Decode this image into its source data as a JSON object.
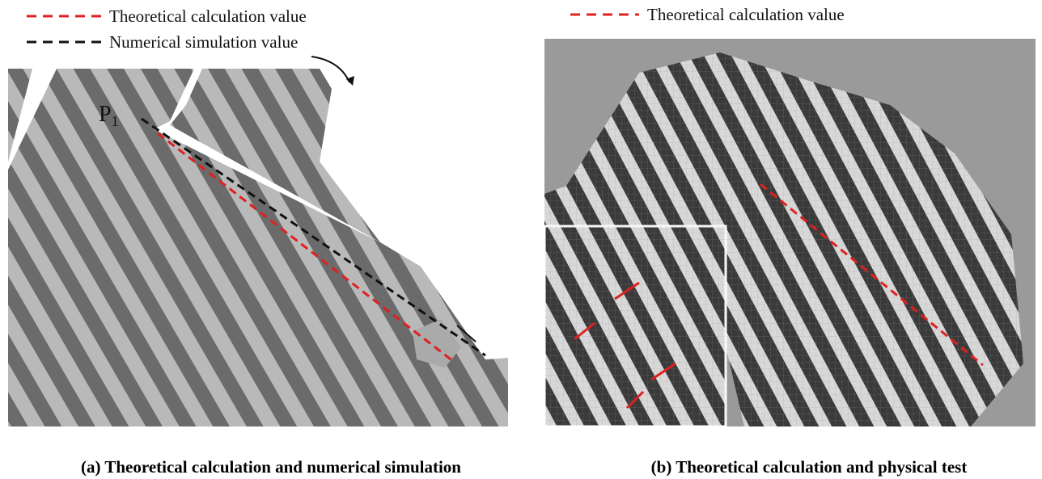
{
  "legend_a": {
    "items": [
      {
        "label": "Theoretical calculation value"
      },
      {
        "label": "Numerical simulation value"
      }
    ]
  },
  "legend_b": {
    "items": [
      {
        "label": "Theoretical calculation value"
      }
    ]
  },
  "point_label": {
    "main": "P",
    "sub": "1"
  },
  "captions": [
    "(a) Theoretical calculation and numerical simulation",
    "(b) Theoretical calculation and physical test"
  ]
}
